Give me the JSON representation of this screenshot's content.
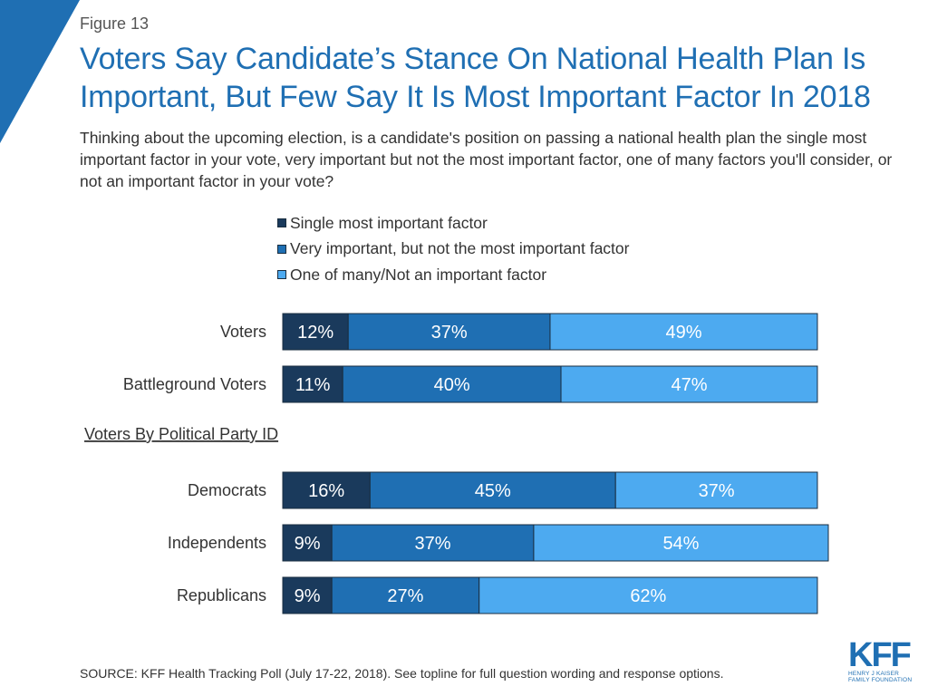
{
  "header": {
    "figure_label": "Figure 13",
    "title": "Voters Say Candidate’s Stance On National Health Plan Is Important, But Few Say It Is Most Important Factor In 2018",
    "subtitle": "Thinking about the upcoming election, is a candidate's position on passing a national health plan the single most important factor in your vote, very important but not the most important factor, one of many factors you'll consider, or not an important factor in your vote?"
  },
  "colors": {
    "accent": "#1f6fb3",
    "series_1": "#1a3a5c",
    "series_2": "#1f6fb3",
    "series_3": "#4daaf0",
    "stroke": "#1a2e40"
  },
  "chart_data": {
    "type": "bar",
    "orientation": "horizontal",
    "stacked": true,
    "legend_position": "top",
    "series": [
      {
        "name": "Single most important factor",
        "values": [
          12,
          11,
          16,
          9,
          9
        ]
      },
      {
        "name": "Very important, but not the most important factor",
        "values": [
          37,
          40,
          45,
          37,
          27
        ]
      },
      {
        "name": "One of many/Not an important factor",
        "values": [
          49,
          47,
          37,
          54,
          62
        ]
      }
    ],
    "categories": [
      "Voters",
      "Battleground Voters",
      "Democrats",
      "Independents",
      "Republicans"
    ],
    "group_heading": "Voters By Political Party ID",
    "xlim": [
      0,
      100
    ],
    "value_suffix": "%"
  },
  "footer": {
    "source": "SOURCE: KFF Health Tracking Poll (July 17-22, 2018). See topline for full question wording and response options."
  },
  "logo": {
    "mark": "KFF",
    "line1": "HENRY J KAISER",
    "line2": "FAMILY FOUNDATION"
  }
}
